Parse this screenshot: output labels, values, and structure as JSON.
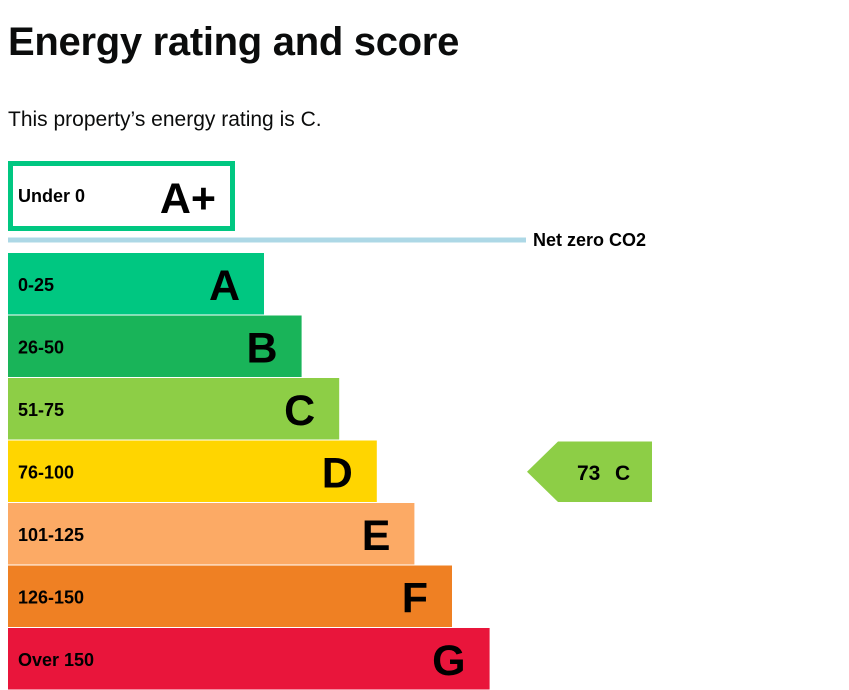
{
  "page": {
    "title": "Energy rating and score",
    "intro": "This property’s energy rating is C."
  },
  "chart_data": {
    "type": "bar",
    "bands": [
      {
        "letter": "A+",
        "range": "Under 0",
        "color": "#00c781",
        "style": "outline"
      },
      {
        "letter": "A",
        "range": "0-25",
        "color": "#00c781",
        "style": "filled"
      },
      {
        "letter": "B",
        "range": "26-50",
        "color": "#19b459",
        "style": "filled"
      },
      {
        "letter": "C",
        "range": "51-75",
        "color": "#8dce46",
        "style": "filled"
      },
      {
        "letter": "D",
        "range": "76-100",
        "color": "#ffd500",
        "style": "filled"
      },
      {
        "letter": "E",
        "range": "101-125",
        "color": "#fcaa65",
        "style": "filled"
      },
      {
        "letter": "F",
        "range": "126-150",
        "color": "#ef8023",
        "style": "filled"
      },
      {
        "letter": "G",
        "range": "Over 150",
        "color": "#e9153b",
        "style": "filled"
      }
    ],
    "net_zero": {
      "label": "Net zero CO2",
      "color": "#add8e6"
    },
    "current": {
      "score": "73",
      "letter": "C",
      "band_index": 3,
      "color": "#8dce46"
    }
  }
}
